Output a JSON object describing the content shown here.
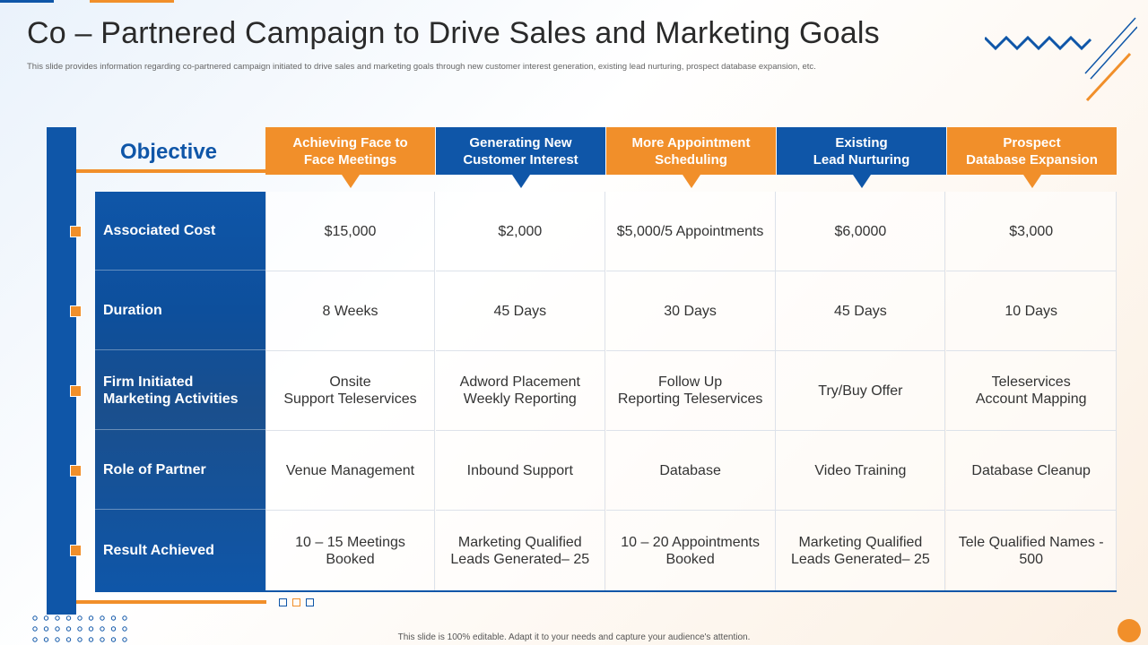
{
  "slide": {
    "title": "Co – Partnered Campaign to Drive Sales and Marketing Goals",
    "subtitle": "This slide provides information regarding co-partnered campaign initiated to drive sales and marketing goals through new customer interest generation, existing lead nurturing, prospect database expansion, etc.",
    "footer": "This slide is 100% editable. Adapt it to your needs and capture your audience's attention."
  },
  "table": {
    "corner_label": "Objective",
    "columns": [
      {
        "label": "Achieving Face to\nFace Meetings",
        "color": "#f18f2a"
      },
      {
        "label": "Generating New\nCustomer Interest",
        "color": "#0f56a8"
      },
      {
        "label": "More Appointment\nScheduling",
        "color": "#f18f2a"
      },
      {
        "label": "Existing\nLead  Nurturing",
        "color": "#0f56a8"
      },
      {
        "label": "Prospect\nDatabase Expansion",
        "color": "#f18f2a"
      }
    ],
    "rows": [
      {
        "label": "Associated Cost",
        "cells": [
          "$15,000",
          "$2,000",
          "$5,000/5 Appointments",
          "$6,0000",
          "$3,000"
        ]
      },
      {
        "label": "Duration",
        "cells": [
          "8 Weeks",
          "45 Days",
          "30 Days",
          "45 Days",
          "10 Days"
        ]
      },
      {
        "label": "Firm Initiated\nMarketing Activities",
        "cells": [
          "Onsite\nSupport Teleservices",
          "Adword Placement\nWeekly Reporting",
          "Follow Up\nReporting Teleservices",
          "Try/Buy  Offer",
          "Teleservices\nAccount Mapping"
        ]
      },
      {
        "label": "Role of Partner",
        "cells": [
          "Venue Management",
          "Inbound  Support",
          "Database",
          "Video Training",
          "Database Cleanup"
        ]
      },
      {
        "label": "Result Achieved",
        "cells": [
          "10 – 15 Meetings\nBooked",
          "Marketing Qualified\nLeads Generated– 25",
          "10 – 20 Appointments\nBooked",
          "Marketing Qualified\nLeads Generated– 25",
          "Tele Qualified Names -\n500"
        ]
      }
    ]
  },
  "theme": {
    "primary": "#0f56a8",
    "accent": "#f18f2a"
  }
}
